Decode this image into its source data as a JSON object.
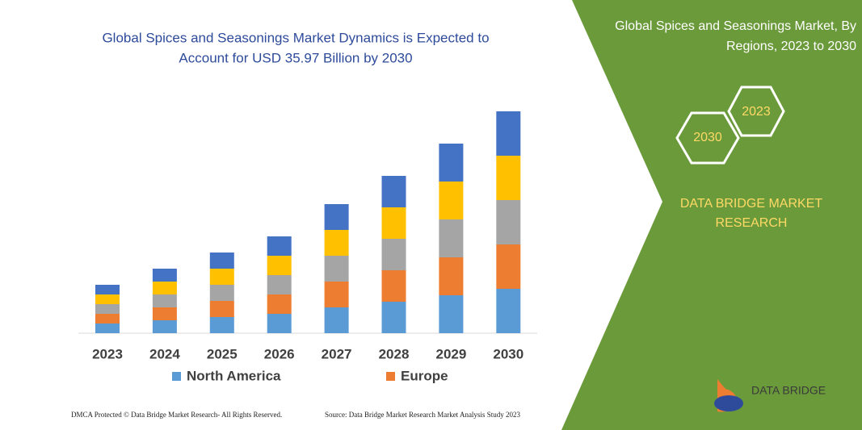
{
  "chart_data": {
    "type": "stacked-bar",
    "title": [
      "Global Spices and Seasonings Market Dynamics is Expected to",
      "Account for USD 35.97 Billion by 2030"
    ],
    "categories": [
      "2023",
      "2024",
      "2025",
      "2026",
      "2027",
      "2028",
      "2029",
      "2030"
    ],
    "series": [
      {
        "name": "North America",
        "color": "#5b9bd5",
        "values": [
          12,
          16,
          20,
          24,
          32,
          39,
          47,
          55
        ]
      },
      {
        "name": "Europe",
        "color": "#ed7d31",
        "values": [
          12,
          16,
          20,
          24,
          32,
          39,
          47,
          55
        ]
      },
      {
        "color": "#a5a5a5",
        "values": [
          12,
          16,
          20,
          24,
          32,
          39,
          47,
          55
        ]
      },
      {
        "color": "#ffc000",
        "values": [
          12,
          16,
          20,
          24,
          32,
          39,
          47,
          55
        ]
      },
      {
        "color": "#4472c4",
        "values": [
          12,
          16,
          20,
          24,
          32,
          39,
          47,
          55
        ]
      }
    ]
  },
  "panel": {
    "title": [
      "Global Spices and Seasonings Market, By",
      "Regions, 2023 to 2030"
    ],
    "hex_right": "2023",
    "hex_left": "2030",
    "brand": [
      "DATA BRIDGE MARKET",
      "RESEARCH"
    ]
  },
  "logo": "DATA BRIDGE",
  "footer": {
    "left": "DMCA Protected © Data Bridge Market Research- All Rights Reserved.",
    "right": "Source: Data Bridge Market Research Market Analysis Study 2023"
  }
}
